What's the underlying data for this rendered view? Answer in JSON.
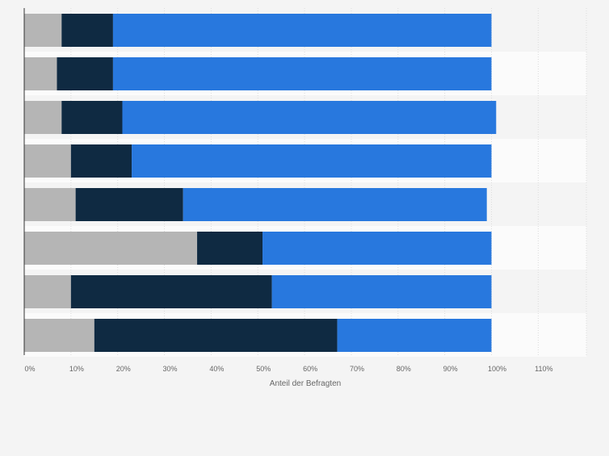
{
  "chart_data": {
    "type": "bar",
    "orientation": "horizontal",
    "stacked": true,
    "xlabel": "Anteil der Befragten",
    "xlim": [
      0,
      120
    ],
    "xticks": [
      "0%",
      "10%",
      "20%",
      "30%",
      "40%",
      "50%",
      "60%",
      "70%",
      "80%",
      "90%",
      "100%",
      "110%"
    ],
    "grid": true,
    "legend": "none",
    "series": [
      {
        "color": "#b5b5b5",
        "values": [
          8,
          7,
          8,
          10,
          11,
          37,
          10,
          15
        ]
      },
      {
        "color": "#0f2a42",
        "values": [
          11,
          12,
          13,
          13,
          23,
          14,
          43,
          52
        ]
      },
      {
        "color": "#2878de",
        "values": [
          81,
          81,
          80,
          77,
          65,
          49,
          47,
          33
        ]
      }
    ]
  }
}
